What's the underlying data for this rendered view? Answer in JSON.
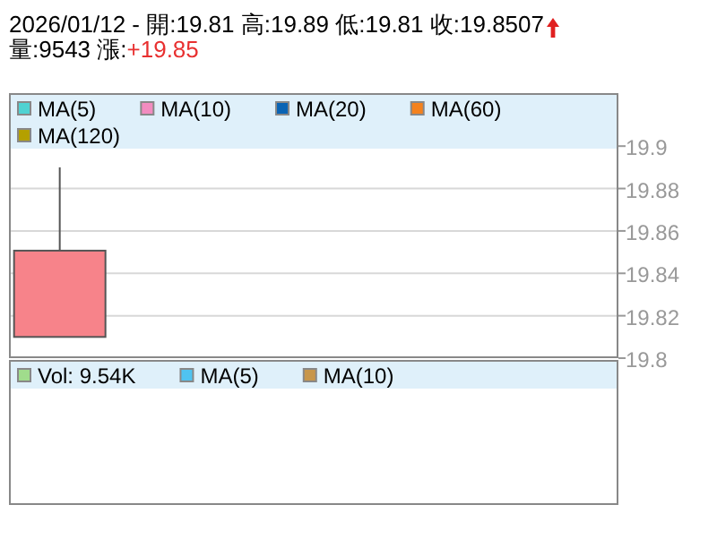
{
  "chart_data": [
    {
      "type": "candlestick",
      "title": "2026/01/12 - 開:19.81 高:19.89 低:19.81 收:19.8507",
      "subtitle": "量:9543 漲:+19.85",
      "categories": [
        null,
        null,
        null,
        null,
        null,
        null
      ],
      "ohlc": [
        [
          19.81,
          19.89,
          19.81,
          19.8507
        ],
        null,
        null,
        null,
        null,
        null
      ],
      "colors": [
        "#f7838a",
        null,
        null,
        null,
        null,
        null
      ],
      "ylim": [
        19.8,
        19.925
      ],
      "yticks": [
        19.8,
        19.82,
        19.84,
        19.86,
        19.88,
        19.9
      ],
      "grid": "y",
      "legend": "top",
      "tick_labels": "y",
      "series": [
        {
          "name": "MA(5)",
          "color": "#4fd2d2",
          "values": [
            null,
            null,
            null,
            null,
            null,
            null
          ]
        },
        {
          "name": "MA(10)",
          "color": "#f28cc0",
          "values": [
            null,
            null,
            null,
            null,
            null,
            null
          ]
        },
        {
          "name": "MA(20)",
          "color": "#0a64b4",
          "values": [
            null,
            null,
            null,
            null,
            null,
            null
          ]
        },
        {
          "name": "MA(60)",
          "color": "#f4821e",
          "values": [
            null,
            null,
            null,
            null,
            null,
            null
          ]
        },
        {
          "name": "MA(120)",
          "color": "#b4a000",
          "values": [
            null,
            null,
            null,
            null,
            null,
            null
          ]
        }
      ]
    },
    {
      "type": "other",
      "legend": "top",
      "series": [
        {
          "name": "Vol: 9.54K",
          "color": "#a0dc8c",
          "values": [
            null
          ]
        },
        {
          "name": "MA(5)",
          "color": "#50c3f0",
          "values": [
            null
          ]
        },
        {
          "name": "MA(10)",
          "color": "#c8964a",
          "values": [
            null
          ]
        }
      ]
    }
  ]
}
